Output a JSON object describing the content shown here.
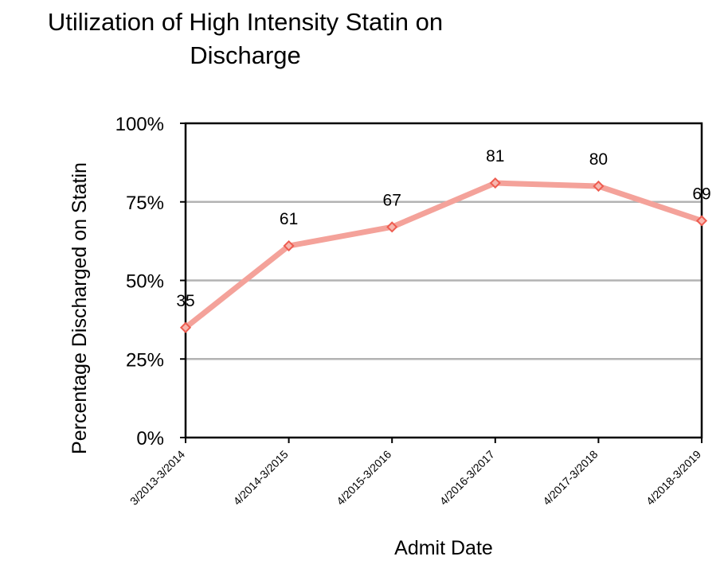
{
  "chart_data": {
    "type": "line",
    "title_lines": [
      "Utilization of High Intensity Statin on",
      "Discharge"
    ],
    "xlabel": "Admit Date",
    "ylabel": "Percentage Discharged on Statin",
    "categories": [
      "3/2013-3/2014",
      "4/2014-3/2015",
      "4/2015-3/2016",
      "4/2016-3/2017",
      "4/2017-3/2018",
      "4/2018-3/2019"
    ],
    "series": [
      {
        "values": [
          35,
          61,
          67,
          81,
          80,
          69
        ],
        "data_labels": [
          "35",
          "61",
          "67",
          "81",
          "80",
          "69"
        ],
        "color": "#f4a29a",
        "marker_color": "#ee5c50"
      }
    ],
    "ylim": [
      0,
      100
    ],
    "yticks": [
      0,
      25,
      50,
      75,
      100
    ],
    "ytick_labels": [
      "0%",
      "25%",
      "50%",
      "75%",
      "100%"
    ],
    "grid": true,
    "grid_color": "#b3b3b3",
    "legend": "none"
  }
}
